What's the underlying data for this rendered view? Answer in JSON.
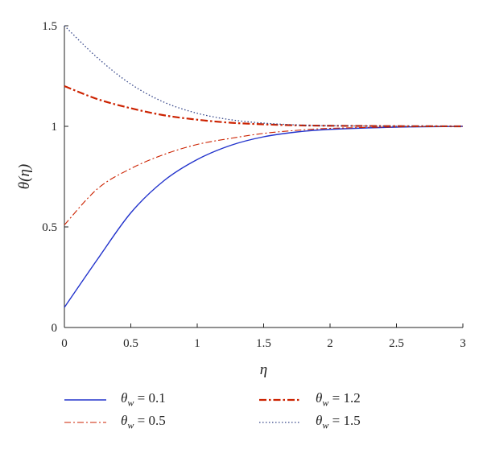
{
  "chart_data": {
    "type": "line",
    "xlabel": "η",
    "ylabel": "θ(η)",
    "xlim": [
      0,
      3
    ],
    "ylim": [
      0,
      1.5
    ],
    "xticks": [
      "0",
      "0.5",
      "1",
      "1.5",
      "2",
      "2.5",
      "3"
    ],
    "yticks": [
      "0",
      "0.5",
      "1",
      "1.5"
    ],
    "grid": false,
    "legend_position": "bottom",
    "series": [
      {
        "name": "θw = 0.1",
        "color": "#2233cc",
        "style": "solid",
        "x": [
          0,
          0.25,
          0.5,
          0.75,
          1,
          1.25,
          1.5,
          1.75,
          2,
          2.5,
          3
        ],
        "y": [
          0.1,
          0.34,
          0.57,
          0.73,
          0.835,
          0.905,
          0.948,
          0.972,
          0.985,
          0.996,
          1.0
        ]
      },
      {
        "name": "θw = 0.5",
        "color": "#cc2200",
        "style": "dashdot-thin",
        "x": [
          0,
          0.25,
          0.5,
          0.75,
          1,
          1.25,
          1.5,
          1.75,
          2,
          2.5,
          3
        ],
        "y": [
          0.51,
          0.69,
          0.79,
          0.86,
          0.91,
          0.94,
          0.965,
          0.98,
          0.99,
          0.997,
          1.0
        ]
      },
      {
        "name": "θw = 1.2",
        "color": "#cc2200",
        "style": "dashdot-thick",
        "x": [
          0,
          0.25,
          0.5,
          0.75,
          1,
          1.25,
          1.5,
          1.75,
          2,
          2.5,
          3
        ],
        "y": [
          1.2,
          1.135,
          1.09,
          1.055,
          1.033,
          1.018,
          1.01,
          1.005,
          1.003,
          1.001,
          1.0
        ]
      },
      {
        "name": "θw = 1.5",
        "color": "#334488",
        "style": "dotted",
        "x": [
          0,
          0.25,
          0.5,
          0.75,
          1,
          1.25,
          1.5,
          1.75,
          2,
          2.5,
          3
        ],
        "y": [
          1.5,
          1.34,
          1.21,
          1.12,
          1.065,
          1.033,
          1.016,
          1.007,
          1.003,
          1.001,
          1.0
        ]
      }
    ],
    "legend": {
      "entries": [
        {
          "symbol": "θ",
          "sub": "w",
          "value": "= 0.1"
        },
        {
          "symbol": "θ",
          "sub": "w",
          "value": "= 0.5"
        },
        {
          "symbol": "θ",
          "sub": "w",
          "value": "= 1.2"
        },
        {
          "symbol": "θ",
          "sub": "w",
          "value": "= 1.5"
        }
      ]
    }
  }
}
